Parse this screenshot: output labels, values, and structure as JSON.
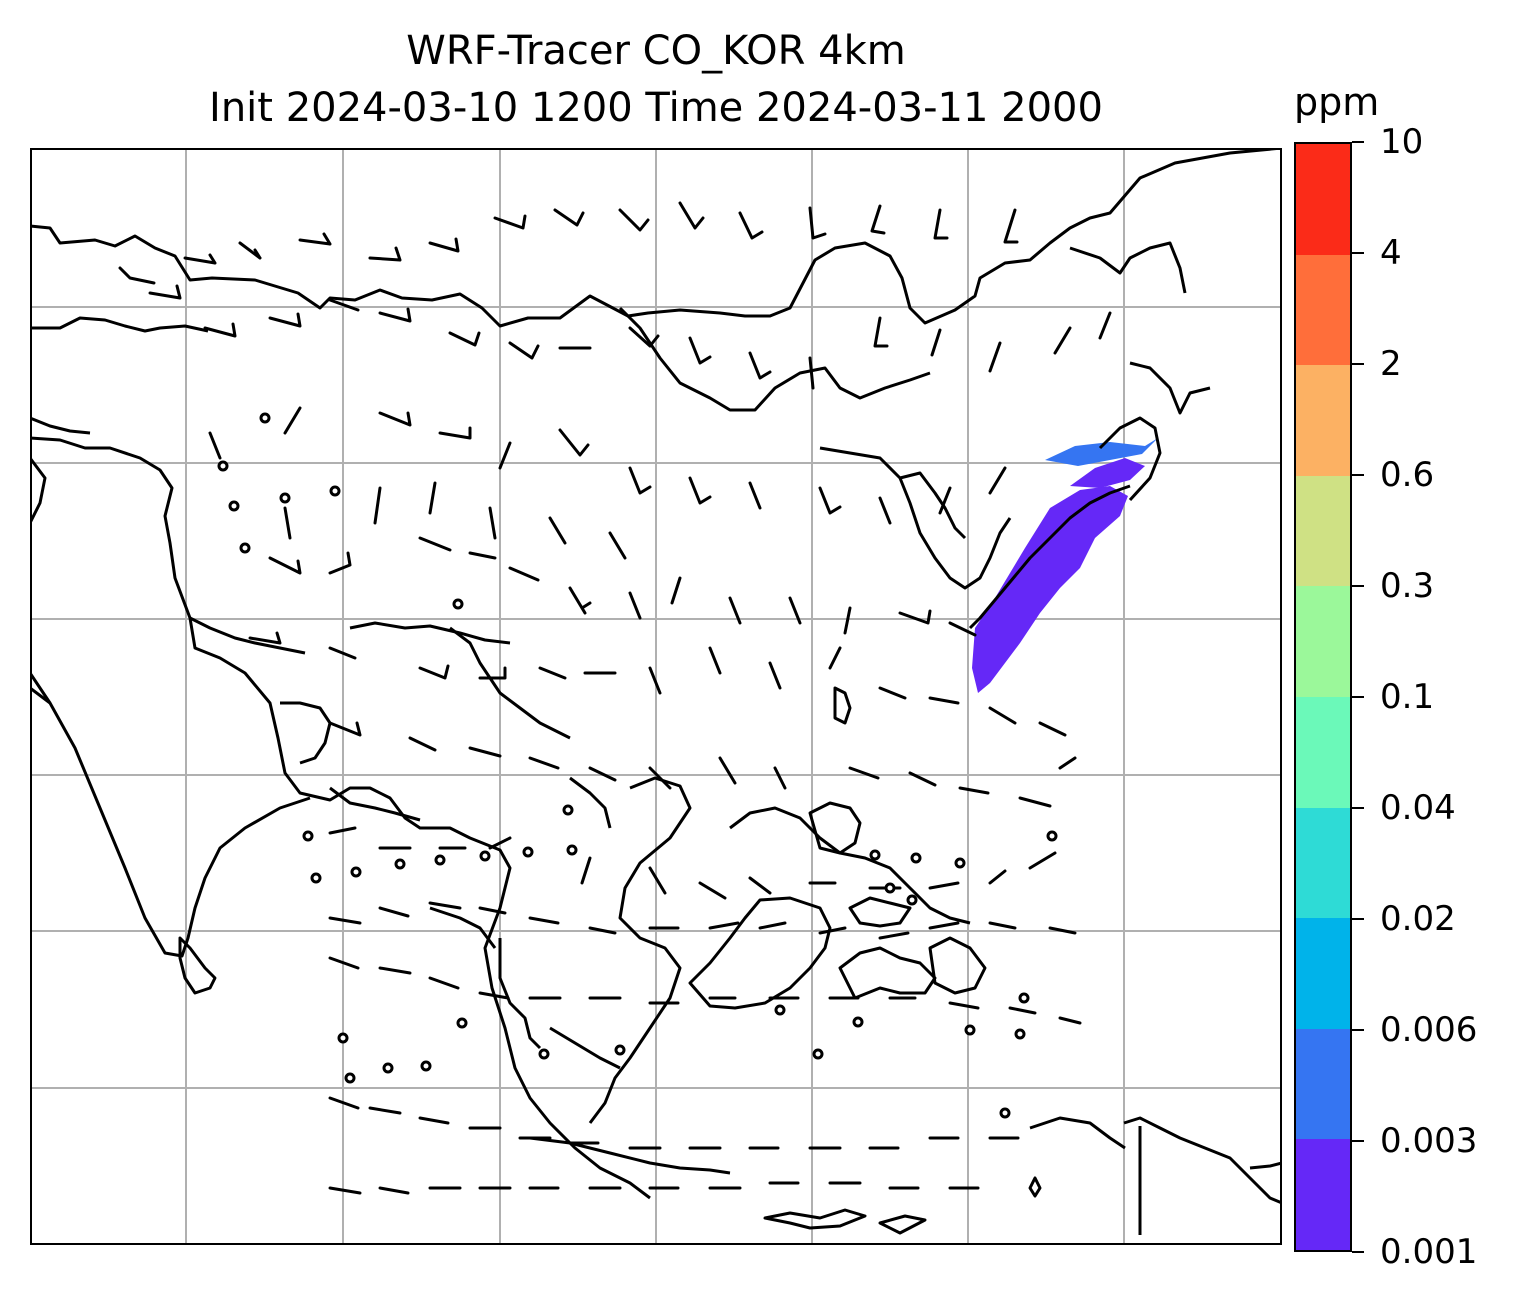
{
  "title": {
    "line1": "WRF-Tracer CO_KOR 4km",
    "line2": "Init 2024-03-10 1200 Time 2024-03-11 2000"
  },
  "colorbar": {
    "unit": "ppm",
    "levels": [
      "0.001",
      "0.003",
      "0.006",
      "0.02",
      "0.04",
      "0.1",
      "0.3",
      "0.6",
      "2",
      "4",
      "10"
    ],
    "colors": [
      "#6528f7",
      "#3575f2",
      "#00b3ea",
      "#2edbd6",
      "#6bf9b9",
      "#9bf89a",
      "#cfe184",
      "#fcb163",
      "#ff6e3a",
      "#fb2b18"
    ]
  },
  "map": {
    "gridlines": true,
    "tracer_color": "#6528f7",
    "tracer_highlight_color": "#3575f2"
  }
}
